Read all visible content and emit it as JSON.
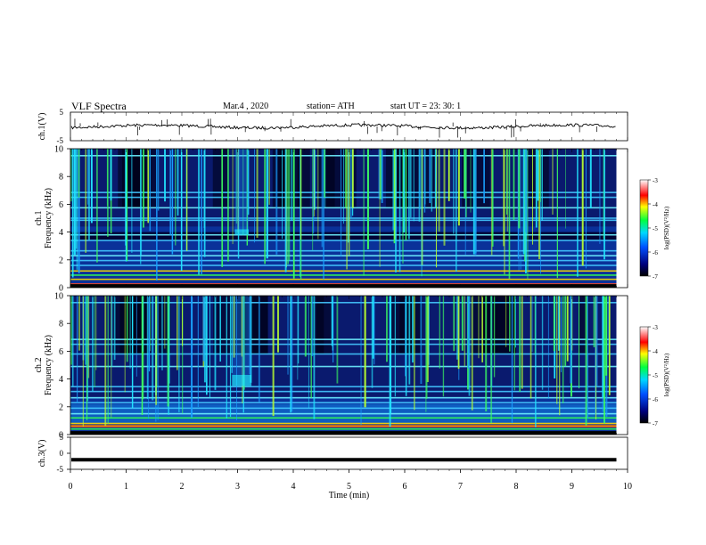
{
  "header": {
    "title": "VLF  Spectra",
    "date": "Mar.4  , 2020",
    "station": "station= ATH",
    "start": "start  UT  =   23: 30: 1"
  },
  "chart_data": [
    {
      "type": "line",
      "panel": "ch1-waveform",
      "ylabel": "ch.1(V)",
      "ylim": [
        -5,
        5
      ],
      "yticks": [
        "5",
        "-5"
      ],
      "x": [
        0,
        9.8
      ],
      "values": [
        0,
        0
      ],
      "color": "#000000",
      "note_values": "noisy waveform around 0 V with sparse spikes"
    },
    {
      "type": "heatmap",
      "panel": "ch1-spectrogram",
      "ylabel": "ch.1\nFrequency  (kHz)",
      "ylim": [
        0,
        10
      ],
      "yticks": [
        "0",
        "2",
        "4",
        "6",
        "8",
        "10"
      ],
      "xlim": [
        0,
        10
      ],
      "colorbar": {
        "label": "log(PSD)(V²/Hz)",
        "range": [
          -7,
          -3
        ],
        "ticks": [
          "-3",
          "-4",
          "-5",
          "-6",
          "-7"
        ]
      },
      "features": {
        "bands_khz": [
          0.25,
          0.6,
          0.9,
          1.2,
          1.6,
          1.95,
          2.3,
          2.65,
          3.4,
          3.8,
          4.85,
          5.0,
          5.75,
          6.5,
          6.85,
          9.5
        ],
        "burst": {
          "t_min": [
            2.95,
            3.2
          ],
          "f_khz": [
            3.8,
            4.2
          ]
        }
      }
    },
    {
      "type": "heatmap",
      "panel": "ch2-spectrogram",
      "ylabel": "ch.2\nFrequency  (kHz)",
      "ylim": [
        0,
        10
      ],
      "yticks": [
        "0",
        "2",
        "4",
        "6",
        "8",
        "10"
      ],
      "xlim": [
        0,
        10
      ],
      "colorbar": {
        "label": "log(PSD)(V²/Hz)",
        "range": [
          -7,
          -3
        ],
        "ticks": [
          "-3",
          "-4",
          "-5",
          "-6",
          "-7"
        ]
      },
      "features": {
        "bands_khz": [
          0.4,
          0.8,
          1.2,
          1.5,
          1.9,
          2.3,
          2.65,
          3.1,
          3.45,
          4.9,
          5.8,
          6.5,
          6.85,
          9.5
        ],
        "burst": {
          "t_min": [
            2.9,
            3.25
          ],
          "f_khz": [
            3.5,
            4.3
          ]
        }
      }
    },
    {
      "type": "line",
      "panel": "ch3-waveform",
      "ylabel": "ch.3(V)",
      "ylim": [
        -5,
        5
      ],
      "yticks": [
        "5",
        "0",
        "-5"
      ],
      "x": [
        0,
        9.8
      ],
      "values": [
        -2,
        -2
      ],
      "color": "#000000",
      "xlabel": "Time  (min)",
      "xlim": [
        0,
        10
      ],
      "xticks": [
        "0",
        "1",
        "2",
        "3",
        "4",
        "5",
        "6",
        "7",
        "8",
        "9",
        "10"
      ]
    }
  ]
}
